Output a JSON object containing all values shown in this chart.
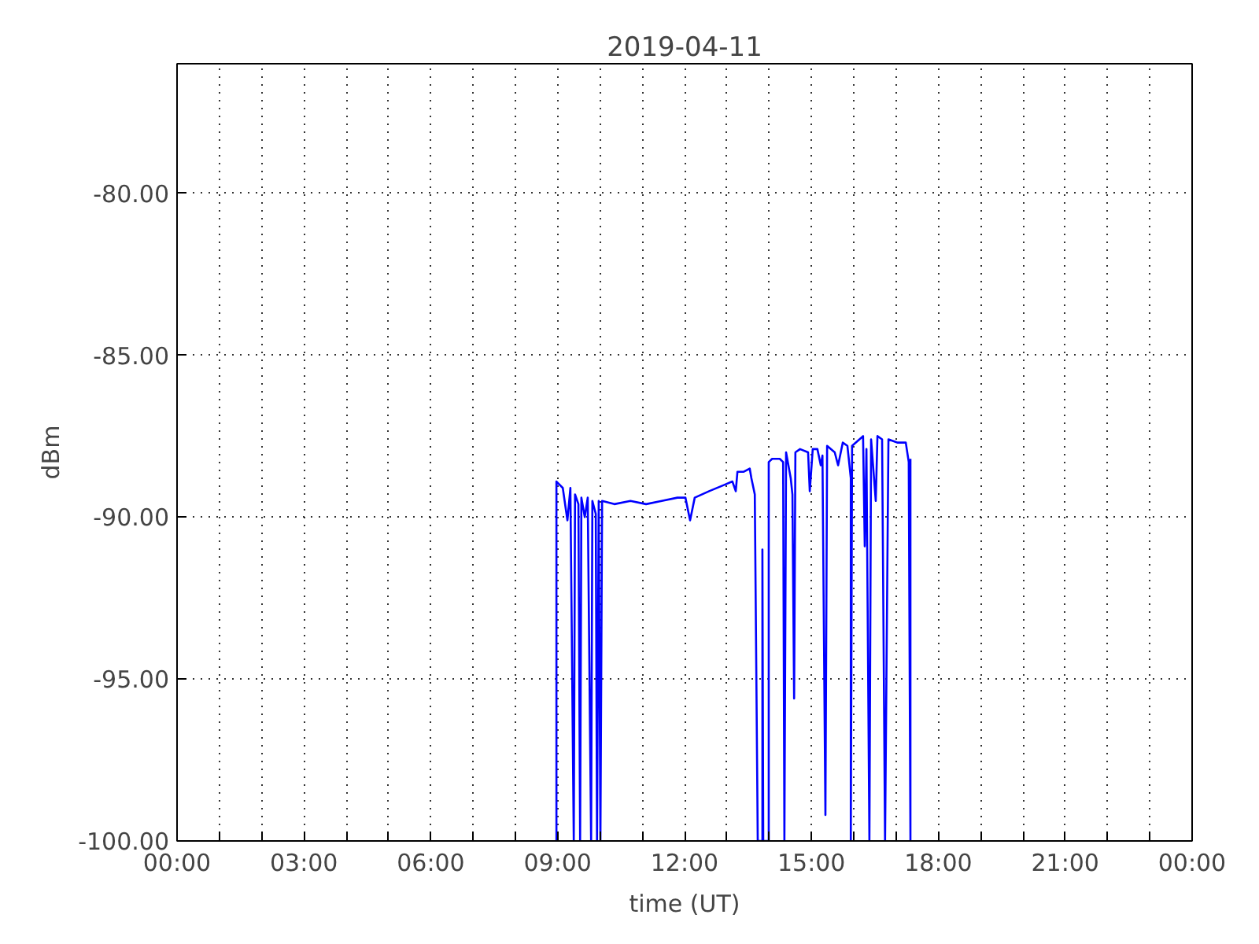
{
  "chart_data": {
    "type": "line",
    "title": "2019-04-11",
    "xlabel": "time (UT)",
    "ylabel": "dBm",
    "xlim": [
      0,
      24
    ],
    "ylim": [
      -100,
      -76
    ],
    "xticks": [
      {
        "value": 0,
        "label": "00:00"
      },
      {
        "value": 1,
        "label": null
      },
      {
        "value": 2,
        "label": null
      },
      {
        "value": 3,
        "label": "03:00"
      },
      {
        "value": 4,
        "label": null
      },
      {
        "value": 5,
        "label": null
      },
      {
        "value": 6,
        "label": "06:00"
      },
      {
        "value": 7,
        "label": null
      },
      {
        "value": 8,
        "label": null
      },
      {
        "value": 9,
        "label": "09:00"
      },
      {
        "value": 10,
        "label": null
      },
      {
        "value": 11,
        "label": null
      },
      {
        "value": 12,
        "label": "12:00"
      },
      {
        "value": 13,
        "label": null
      },
      {
        "value": 14,
        "label": null
      },
      {
        "value": 15,
        "label": "15:00"
      },
      {
        "value": 16,
        "label": null
      },
      {
        "value": 17,
        "label": null
      },
      {
        "value": 18,
        "label": "18:00"
      },
      {
        "value": 19,
        "label": null
      },
      {
        "value": 20,
        "label": null
      },
      {
        "value": 21,
        "label": "21:00"
      },
      {
        "value": 22,
        "label": null
      },
      {
        "value": 23,
        "label": null
      },
      {
        "value": 24,
        "label": "00:00"
      }
    ],
    "yticks": [
      {
        "value": -100,
        "label": "-100.00"
      },
      {
        "value": -95,
        "label": "-95.00"
      },
      {
        "value": -90,
        "label": "-90.00"
      },
      {
        "value": -85,
        "label": "-85.00"
      },
      {
        "value": -80,
        "label": "-80.00"
      }
    ],
    "grid": true,
    "marker": "none",
    "line_style": "solid",
    "series": [
      {
        "color": "#0000ff",
        "x": [
          8.97,
          8.97,
          9.12,
          9.23,
          9.3,
          9.38,
          9.41,
          9.49,
          9.53,
          9.56,
          9.64,
          9.71,
          9.79,
          9.82,
          9.9,
          9.93,
          9.97,
          10.01,
          10.05,
          10.34,
          10.72,
          11.09,
          11.46,
          11.83,
          12.02,
          12.13,
          12.24,
          12.58,
          12.95,
          13.13,
          13.21,
          13.25,
          13.4,
          13.54,
          13.58,
          13.66,
          13.73,
          13.84,
          13.84,
          13.86,
          13.99,
          13.99,
          14.07,
          14.25,
          14.33,
          14.36,
          14.4,
          14.51,
          14.55,
          14.59,
          14.62,
          14.73,
          14.92,
          14.96,
          15.03,
          15.14,
          15.22,
          15.26,
          15.33,
          15.37,
          15.55,
          15.63,
          15.74,
          15.85,
          15.93,
          15.93,
          15.96,
          16.22,
          16.26,
          16.3,
          16.37,
          16.41,
          16.52,
          16.56,
          16.67,
          16.74,
          16.82,
          17.04,
          17.23,
          17.3,
          17.34,
          17.34
        ],
        "values": [
          -100,
          -88.9,
          -89.1,
          -90.1,
          -89.1,
          -100,
          -89.3,
          -89.6,
          -100,
          -89.4,
          -90.0,
          -89.4,
          -100,
          -89.5,
          -89.9,
          -100,
          -89.5,
          -100,
          -89.5,
          -89.6,
          -89.5,
          -89.6,
          -89.5,
          -89.4,
          -89.4,
          -90.1,
          -89.4,
          -89.2,
          -89.0,
          -88.9,
          -89.2,
          -88.6,
          -88.6,
          -88.5,
          -88.8,
          -89.3,
          -100,
          -100,
          -91.0,
          -100,
          -100,
          -88.3,
          -88.2,
          -88.2,
          -88.3,
          -100,
          -88.0,
          -88.8,
          -89.3,
          -95.6,
          -88.0,
          -87.9,
          -88.0,
          -89.2,
          -87.9,
          -87.9,
          -88.4,
          -88.1,
          -99.2,
          -87.8,
          -88.0,
          -88.4,
          -87.7,
          -87.8,
          -88.8,
          -100,
          -87.8,
          -87.5,
          -90.9,
          -87.9,
          -100,
          -87.6,
          -89.5,
          -87.5,
          -87.6,
          -100,
          -87.6,
          -87.7,
          -87.7,
          -88.3,
          -100,
          -88.2
        ]
      }
    ]
  }
}
